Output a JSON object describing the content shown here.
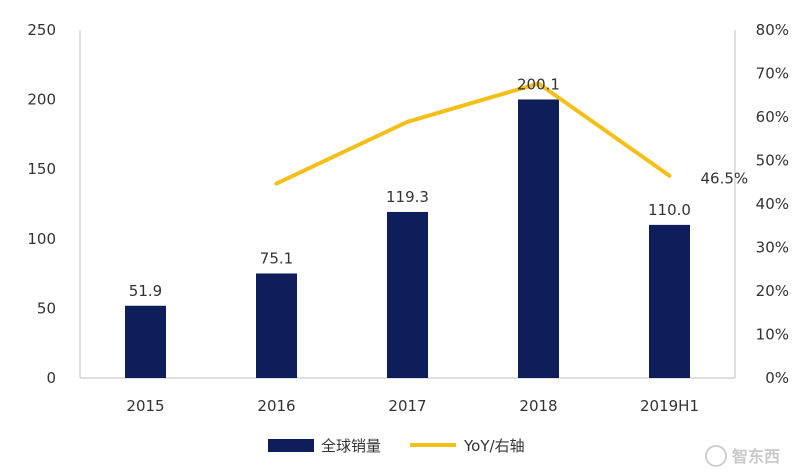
{
  "chart_data": {
    "type": "bar",
    "categories": [
      "2015",
      "2016",
      "2017",
      "2018",
      "2019H1"
    ],
    "series": [
      {
        "name": "全球销量",
        "type": "bar",
        "axis": "left",
        "values": [
          51.9,
          75.1,
          119.3,
          200.1,
          110.0
        ],
        "labels": [
          "51.9",
          "75.1",
          "119.3",
          "200.1",
          "110.0"
        ],
        "color": "#0e1e5b"
      },
      {
        "name": "YoY/右轴",
        "type": "line",
        "axis": "right",
        "values": [
          null,
          44.7,
          58.9,
          67.7,
          46.5
        ],
        "labels": [
          "",
          "",
          "",
          "",
          "46.5%"
        ],
        "color": "#f5bf19"
      }
    ],
    "left_axis": {
      "ylim": [
        0,
        250
      ],
      "ticks": [
        "0",
        "50",
        "100",
        "150",
        "200",
        "250"
      ]
    },
    "right_axis": {
      "ylim": [
        0,
        80
      ],
      "ticks": [
        "0%",
        "10%",
        "20%",
        "30%",
        "40%",
        "50%",
        "60%",
        "70%",
        "80%"
      ]
    },
    "grid": false,
    "legend_position": "bottom"
  },
  "watermark": {
    "text": "智东西"
  }
}
